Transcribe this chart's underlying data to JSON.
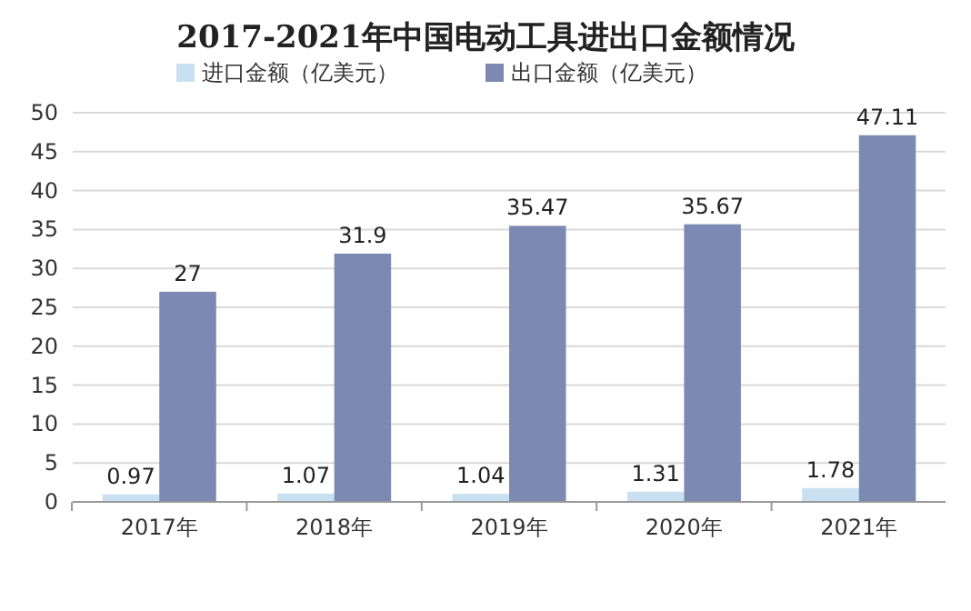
{
  "chart_data": {
    "type": "bar",
    "title": "2017-2021年中国电动工具进出口金额情况",
    "categories": [
      "2017年",
      "2018年",
      "2019年",
      "2020年",
      "2021年"
    ],
    "series": [
      {
        "name": "进口金额（亿美元）",
        "color": "#c9e0f0",
        "values": [
          0.97,
          1.07,
          1.04,
          1.31,
          1.78
        ]
      },
      {
        "name": "出口金额（亿美元）",
        "color": "#7c89b3",
        "values": [
          27,
          31.9,
          35.47,
          35.67,
          47.11
        ]
      }
    ],
    "ylim": [
      0,
      50
    ],
    "yticks": [
      0,
      5,
      10,
      15,
      20,
      25,
      30,
      35,
      40,
      45,
      50
    ],
    "grid": "y",
    "legend": "top",
    "data_labels": true
  }
}
